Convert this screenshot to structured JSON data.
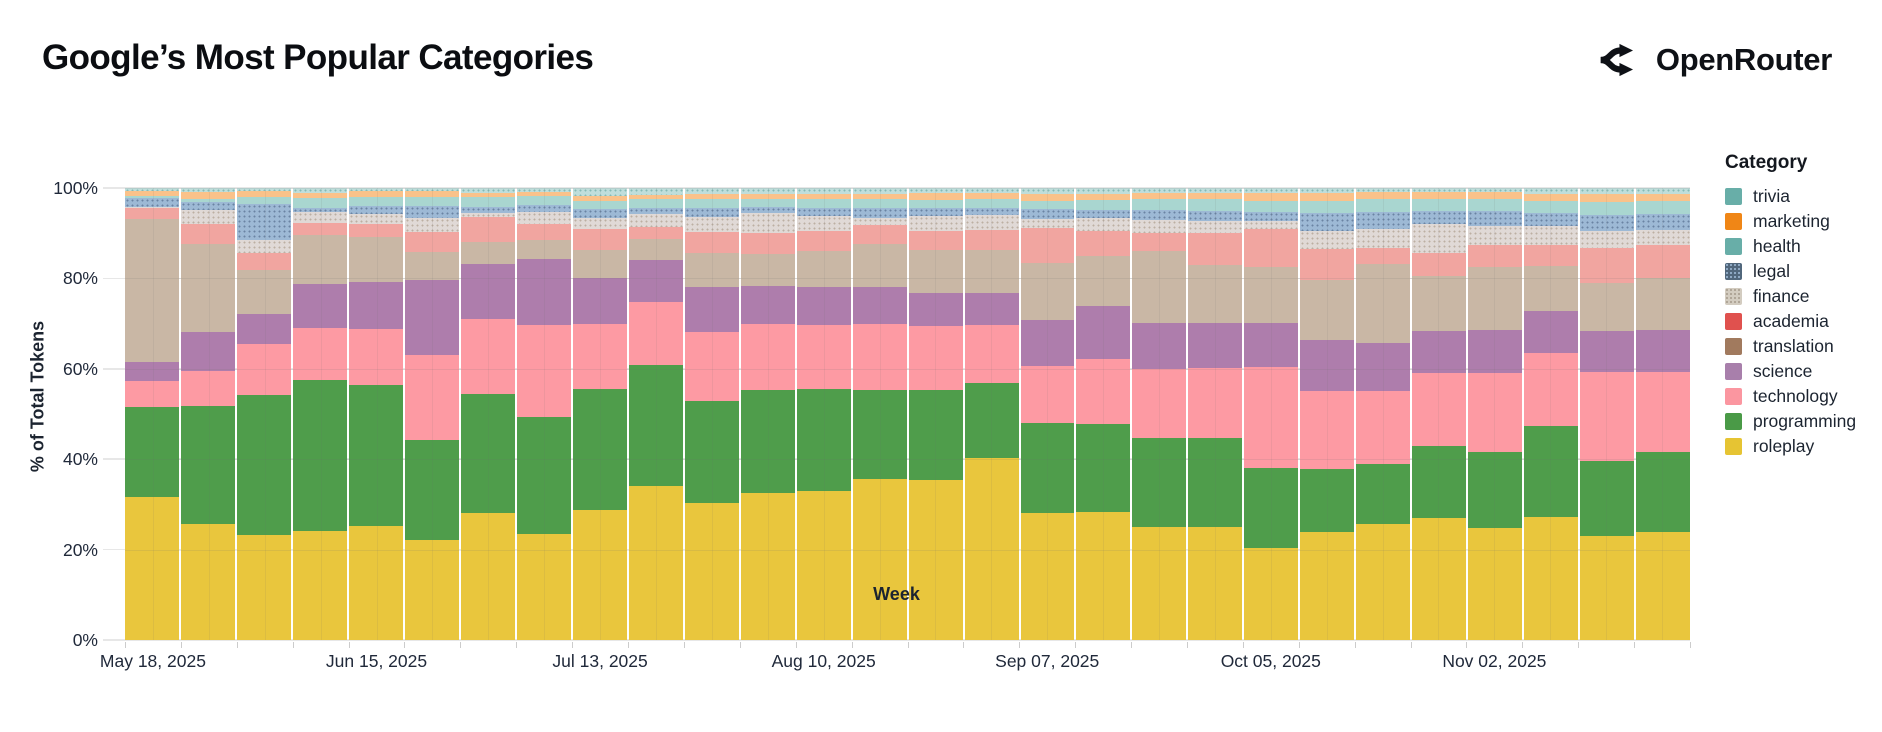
{
  "header": {
    "title": "Google’s Most Popular Categories",
    "brand": "OpenRouter"
  },
  "legend": {
    "title": "Category",
    "items": [
      {
        "label": "trivia",
        "color": "#68aea8",
        "pattern": false
      },
      {
        "label": "marketing",
        "color": "#f08616",
        "pattern": false
      },
      {
        "label": "health",
        "color": "#68aea8",
        "pattern": false
      },
      {
        "label": "legal",
        "color": "#51677c",
        "pattern": true,
        "dot": "#9db9d5"
      },
      {
        "label": "finance",
        "color": "#d3ccc0",
        "pattern": true,
        "dot": "#a79c8e"
      },
      {
        "label": "academia",
        "color": "#e0514e",
        "pattern": false
      },
      {
        "label": "translation",
        "color": "#a17a5e",
        "pattern": false
      },
      {
        "label": "science",
        "color": "#a87fab",
        "pattern": false
      },
      {
        "label": "technology",
        "color": "#fb96a0",
        "pattern": false
      },
      {
        "label": "programming",
        "color": "#4a9a47",
        "pattern": false
      },
      {
        "label": "roleplay",
        "color": "#e6c433",
        "pattern": false
      }
    ]
  },
  "chart_data": {
    "type": "bar",
    "stacked": true,
    "title": "Google’s Most Popular Categories",
    "xlabel": "Week",
    "ylabel": "% of Total Tokens",
    "ylim": [
      0,
      100
    ],
    "y_ticks": [
      "0%",
      "20%",
      "40%",
      "60%",
      "80%",
      "100%"
    ],
    "x_tick_indices": [
      0,
      4,
      8,
      12,
      16,
      20,
      24
    ],
    "weeks": [
      "May 18, 2025",
      "May 25, 2025",
      "Jun 01, 2025",
      "Jun 08, 2025",
      "Jun 15, 2025",
      "Jun 22, 2025",
      "Jun 29, 2025",
      "Jul 06, 2025",
      "Jul 13, 2025",
      "Jul 20, 2025",
      "Jul 27, 2025",
      "Aug 03, 2025",
      "Aug 10, 2025",
      "Aug 17, 2025",
      "Aug 24, 2025",
      "Aug 31, 2025",
      "Sep 07, 2025",
      "Sep 14, 2025",
      "Sep 21, 2025",
      "Sep 28, 2025",
      "Oct 05, 2025",
      "Oct 12, 2025",
      "Oct 19, 2025",
      "Oct 26, 2025",
      "Nov 02, 2025",
      "Nov 09, 2025",
      "Nov 16, 2025",
      "Nov 23, 2025"
    ],
    "series": [
      {
        "name": "roleplay",
        "color": "#e9c63d",
        "pattern": false,
        "values": [
          31.6,
          25.6,
          23.2,
          24.2,
          25.3,
          22.1,
          28.0,
          23.5,
          28.7,
          34.0,
          30.3,
          32.6,
          33.0,
          35.7,
          35.3,
          40.3,
          28.2,
          28.3,
          25.1,
          24.9,
          20.4,
          23.8,
          25.6,
          27.1,
          24.7,
          27.3,
          23.1,
          23.8
        ]
      },
      {
        "name": "programming",
        "color": "#4f9d4b",
        "pattern": false,
        "values": [
          20.0,
          26.1,
          31.1,
          33.3,
          31.1,
          22.2,
          26.5,
          25.8,
          26.9,
          26.9,
          22.6,
          22.7,
          22.6,
          19.7,
          20.1,
          16.5,
          19.8,
          19.4,
          19.5,
          19.9,
          17.7,
          14.0,
          13.4,
          15.8,
          17.0,
          20.1,
          16.4,
          17.9
        ]
      },
      {
        "name": "technology",
        "color": "#fd9aa3",
        "pattern": false,
        "values": [
          5.6,
          7.9,
          11.1,
          11.6,
          12.4,
          18.7,
          16.6,
          20.3,
          14.4,
          13.8,
          15.3,
          14.6,
          14.2,
          14.6,
          14.0,
          12.8,
          12.7,
          14.5,
          15.3,
          15.3,
          22.3,
          17.2,
          16.1,
          16.1,
          17.3,
          16.2,
          19.7,
          17.5
        ]
      },
      {
        "name": "science",
        "color": "#ae7dac",
        "pattern": false,
        "values": [
          4.4,
          8.5,
          6.8,
          9.6,
          10.4,
          16.7,
          12.2,
          14.6,
          10.1,
          9.4,
          10.0,
          8.4,
          8.3,
          8.1,
          7.4,
          7.2,
          10.2,
          11.6,
          10.3,
          10.1,
          9.7,
          11.4,
          10.7,
          9.4,
          9.6,
          9.1,
          9.1,
          9.3
        ]
      },
      {
        "name": "translation",
        "color": "#c9b7a5",
        "pattern": false,
        "values": [
          31.5,
          19.6,
          9.6,
          10.8,
          9.9,
          6.1,
          4.8,
          4.4,
          6.1,
          4.6,
          7.5,
          7.1,
          7.9,
          9.6,
          9.6,
          9.6,
          12.5,
          11.1,
          15.9,
          12.8,
          12.5,
          13.3,
          17.3,
          12.1,
          14.0,
          10.1,
          10.7,
          11.6
        ]
      },
      {
        "name": "academia",
        "color": "#f1a5a0",
        "pattern": false,
        "values": [
          2.4,
          4.4,
          3.9,
          2.7,
          3.0,
          4.4,
          5.4,
          3.5,
          4.8,
          2.7,
          4.6,
          4.6,
          4.6,
          4.1,
          4.1,
          4.4,
          7.7,
          5.6,
          4.0,
          7.0,
          8.3,
          6.8,
          3.7,
          5.2,
          4.9,
          4.6,
          7.7,
          7.2
        ]
      },
      {
        "name": "finance",
        "color": "#e0d9d6",
        "pattern": true,
        "dot": "#bcafa2",
        "values": [
          0.3,
          3.0,
          2.7,
          2.4,
          2.2,
          3.1,
          0.9,
          2.7,
          2.4,
          2.9,
          3.2,
          4.4,
          3.2,
          1.5,
          3.3,
          3.2,
          2.0,
          2.9,
          2.8,
          2.8,
          1.7,
          4.1,
          4.1,
          6.3,
          4.0,
          4.1,
          3.9,
          3.5
        ]
      },
      {
        "name": "legal",
        "color": "#9db9d5",
        "pattern": true,
        "dot": "#6a84a3",
        "values": [
          1.9,
          1.9,
          8.1,
          1.0,
          1.7,
          2.8,
          1.5,
          1.5,
          1.9,
          1.3,
          2.0,
          1.5,
          1.9,
          2.2,
          1.8,
          1.7,
          2.2,
          1.8,
          2.2,
          2.2,
          2.2,
          3.8,
          3.7,
          2.9,
          3.4,
          2.9,
          3.5,
          3.5
        ]
      },
      {
        "name": "health",
        "color": "#a9d6d0",
        "pattern": false,
        "values": [
          0.5,
          0.6,
          1.5,
          2.1,
          2.0,
          1.9,
          2.1,
          1.9,
          1.9,
          1.9,
          2.0,
          1.8,
          1.9,
          2.0,
          1.8,
          1.8,
          1.9,
          2.1,
          2.4,
          2.5,
          2.4,
          2.8,
          2.9,
          2.7,
          2.7,
          2.8,
          2.8,
          2.9
        ]
      },
      {
        "name": "marketing",
        "color": "#fac28a",
        "pattern": false,
        "values": [
          1.1,
          1.5,
          1.3,
          1.3,
          1.3,
          1.3,
          1.0,
          0.9,
          1.0,
          0.9,
          1.3,
          1.1,
          1.2,
          1.2,
          1.6,
          1.5,
          1.6,
          1.5,
          1.5,
          1.5,
          1.6,
          1.8,
          1.6,
          1.5,
          1.5,
          1.6,
          1.8,
          1.6
        ]
      },
      {
        "name": "trivia",
        "color": "#bfdedb",
        "pattern": true,
        "dot": "#85bab4",
        "values": [
          0.7,
          0.9,
          0.7,
          1.0,
          0.7,
          0.7,
          1.0,
          0.9,
          1.8,
          1.6,
          1.2,
          1.2,
          1.2,
          1.3,
          1.0,
          1.0,
          1.2,
          1.2,
          1.0,
          1.0,
          1.2,
          1.0,
          0.9,
          0.9,
          0.9,
          1.2,
          1.3,
          1.2
        ]
      }
    ]
  }
}
